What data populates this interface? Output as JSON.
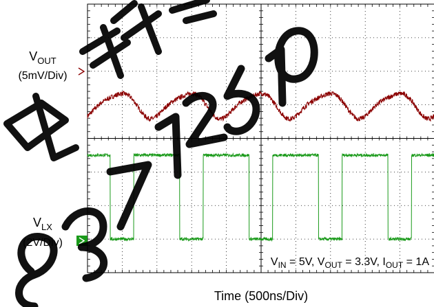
{
  "chart_data": {
    "type": "line",
    "title": "",
    "xlabel": "Time (500ns/Div)",
    "x_unit": "ns",
    "x_per_division": 500,
    "x_divisions": 10,
    "y_divisions": 8,
    "grid": true,
    "background": "#ffffff",
    "watermark": "电子有限 8371251 0",
    "annotation": {
      "parts": [
        {
          "t": "V",
          "sub": false
        },
        {
          "t": "IN",
          "sub": true
        },
        {
          "t": " = 5V, V",
          "sub": false
        },
        {
          "t": "OUT",
          "sub": true
        },
        {
          "t": " = 3.3V, I",
          "sub": false
        },
        {
          "t": "OUT",
          "sub": true
        },
        {
          "t": " = 1A",
          "sub": false
        }
      ]
    },
    "series": [
      {
        "name": "V_OUT",
        "label_main": "V",
        "label_sub": "OUT",
        "scale": "(5mV/Div)",
        "color": "#8b0000",
        "offset_division": 1.0,
        "waveform": "ripple",
        "period_ns": 1000,
        "amplitude_mv": 5,
        "noise_mv": 0.6
      },
      {
        "name": "V_LX",
        "label_main": "V",
        "label_sub": "LX",
        "scale": "(2V/Div)",
        "color": "#1a9a1a",
        "offset_division": -3.0,
        "waveform": "square",
        "period_ns": 1000,
        "duty": 0.66,
        "high_v": 5,
        "low_v": 0,
        "first_rise_ns": 666
      }
    ]
  }
}
